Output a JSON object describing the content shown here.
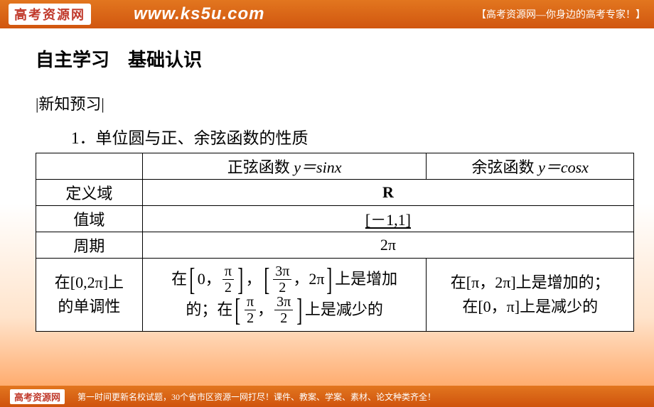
{
  "banner": {
    "logo_text": "高考资源网",
    "url_text": "www.ks5u.com",
    "slogan": "【高考资源网—你身边的高考专家！】"
  },
  "content": {
    "heading1": "自主学习　基础认识",
    "heading2": "|新知预习|",
    "heading3": "1．单位圆与正、余弦函数的性质"
  },
  "table": {
    "header_sine_pre": "正弦函数 ",
    "header_sine_eq": "y＝sin",
    "header_sine_x": "x",
    "header_cos_pre": "余弦函数 ",
    "header_cos_eq": "y＝cos",
    "header_cos_x": "x",
    "row_domain_label": "定义域",
    "row_domain_value": "R",
    "row_range_label": "值域",
    "row_range_value": "[－1,1]",
    "row_period_label": "周期",
    "row_period_value": "2π",
    "row_mono_label_l1": "在[0,2π]上",
    "row_mono_label_l2": "的单调性",
    "sine_mono_l1_a": "在",
    "sine_mono_l1_b": "0，",
    "sine_mono_l1_c": "，",
    "sine_mono_l1_d": "，2π",
    "sine_mono_l1_e": "上是增加",
    "sine_mono_l2_a": "的；在",
    "sine_mono_l2_b": "，",
    "sine_mono_l2_c": "上是减少的",
    "cos_mono_l1": "在[π，2π]上是增加的；",
    "cos_mono_l2": "在[0，π]上是减少的",
    "frac_pi": "π",
    "frac_2": "2",
    "frac_3pi": "3π"
  },
  "footer": {
    "logo_text": "高考资源网",
    "text": "第一时间更新名校试题，30个省市区资源一网打尽！课件、教案、学案、素材、论文种类齐全！"
  },
  "colors": {
    "banner_top": "#e2761f",
    "banner_bottom": "#d1560f",
    "page_bg_low": "#ff9b52",
    "text": "#000000",
    "white": "#ffffff"
  }
}
